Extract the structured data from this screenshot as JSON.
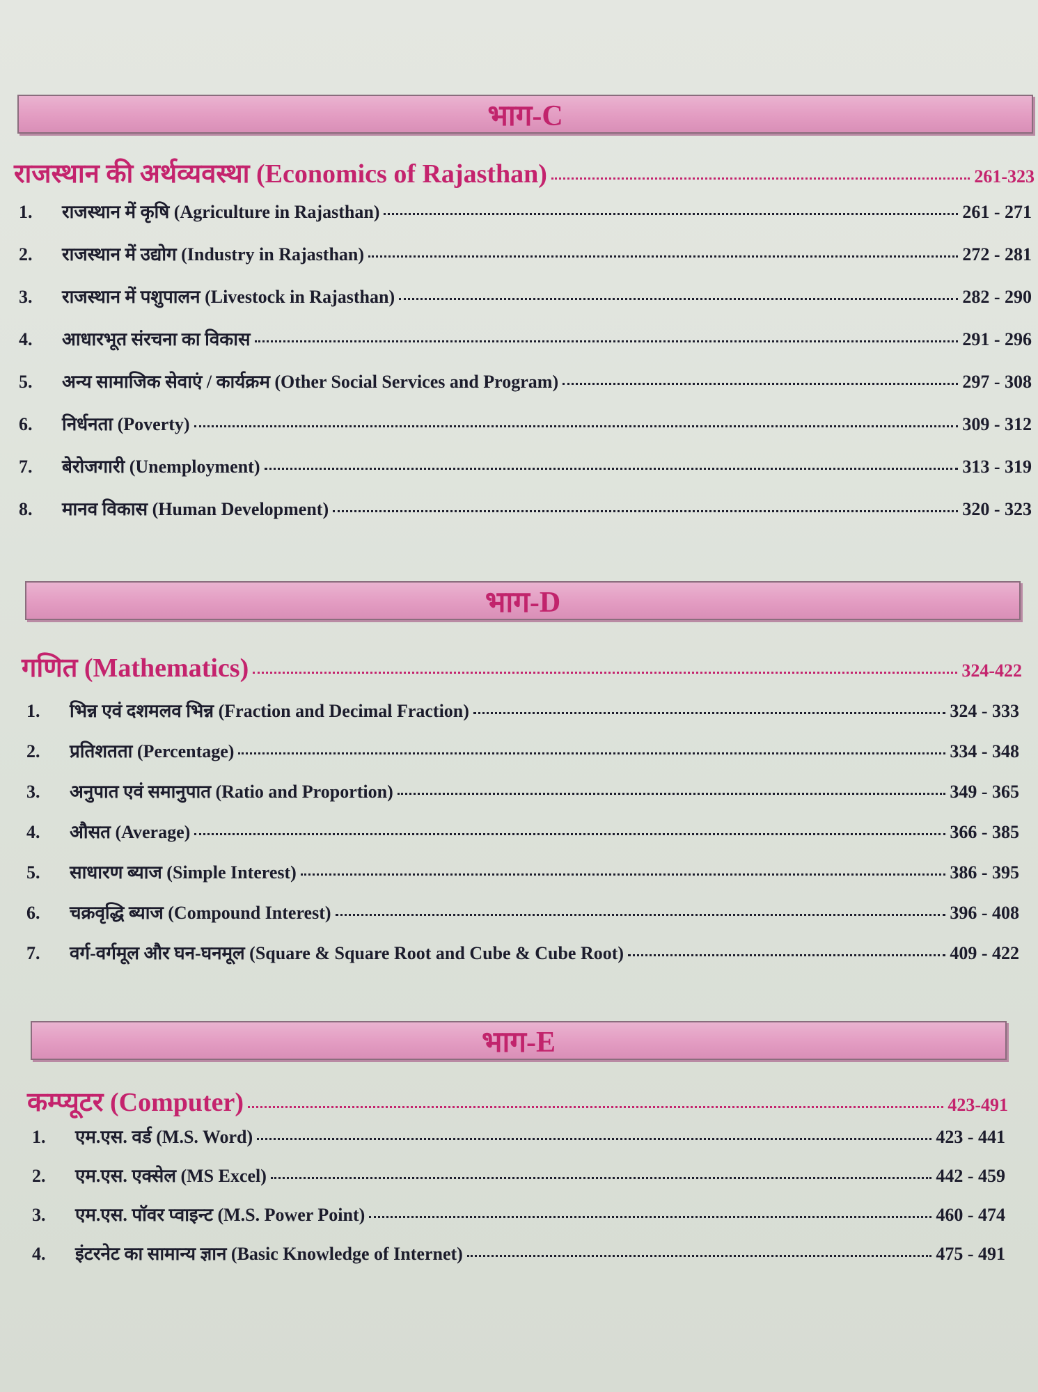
{
  "sections": [
    {
      "part": "भाग-C",
      "heading": "राजस्थान की अर्थव्यवस्था (Economics of Rajasthan)",
      "pages": "261-323",
      "items": [
        {
          "number": "1.",
          "title": "राजस्थान में कृषि (Agriculture in Rajasthan)",
          "pages": "261 - 271"
        },
        {
          "number": "2.",
          "title": "राजस्थान में उद्योग (Industry in Rajasthan)",
          "pages": "272 - 281"
        },
        {
          "number": "3.",
          "title": "राजस्थान में पशुपालन (Livestock in Rajasthan)",
          "pages": "282 - 290"
        },
        {
          "number": "4.",
          "title": "आधारभूत संरचना का विकास",
          "pages": "291 - 296"
        },
        {
          "number": "5.",
          "title": "अन्य सामाजिक सेवाएं / कार्यक्रम (Other Social Services and Program)",
          "pages": "297 - 308"
        },
        {
          "number": "6.",
          "title": "निर्धनता (Poverty)",
          "pages": "309 - 312"
        },
        {
          "number": "7.",
          "title": "बेरोजगारी (Unemployment)",
          "pages": "313 - 319"
        },
        {
          "number": "8.",
          "title": "मानव विकास (Human Development)",
          "pages": "320 - 323"
        }
      ]
    },
    {
      "part": "भाग-D",
      "heading": "गणित (Mathematics)",
      "pages": "324-422",
      "items": [
        {
          "number": "1.",
          "title": "भिन्न एवं दशमलव भिन्न (Fraction and Decimal Fraction)",
          "pages": "324 - 333"
        },
        {
          "number": "2.",
          "title": "प्रतिशतता (Percentage)",
          "pages": "334 - 348"
        },
        {
          "number": "3.",
          "title": "अनुपात एवं समानुपात (Ratio and Proportion)",
          "pages": "349 - 365"
        },
        {
          "number": "4.",
          "title": "औसत (Average)",
          "pages": "366 - 385"
        },
        {
          "number": "5.",
          "title": "साधारण ब्याज (Simple Interest)",
          "pages": "386 - 395"
        },
        {
          "number": "6.",
          "title": "चक्रवृद्धि ब्याज (Compound Interest)",
          "pages": "396 - 408"
        },
        {
          "number": "7.",
          "title": "वर्ग-वर्गमूल और घन-घनमूल (Square & Square Root and Cube & Cube Root)",
          "pages": "409 - 422"
        }
      ]
    },
    {
      "part": "भाग-E",
      "heading": "कम्प्यूटर (Computer)",
      "pages": "423-491",
      "items": [
        {
          "number": "1.",
          "title": "एम.एस. वर्ड (M.S. Word)",
          "pages": "423 - 441"
        },
        {
          "number": "2.",
          "title": "एम.एस. एक्सेल (MS Excel)",
          "pages": "442 - 459"
        },
        {
          "number": "3.",
          "title": "एम.एस. पॉवर प्वाइन्ट (M.S. Power Point)",
          "pages": "460 - 474"
        },
        {
          "number": "4.",
          "title": "इंटरनेट का सामान्य ज्ञान (Basic Knowledge of Internet)",
          "pages": "475 - 491"
        }
      ]
    }
  ]
}
